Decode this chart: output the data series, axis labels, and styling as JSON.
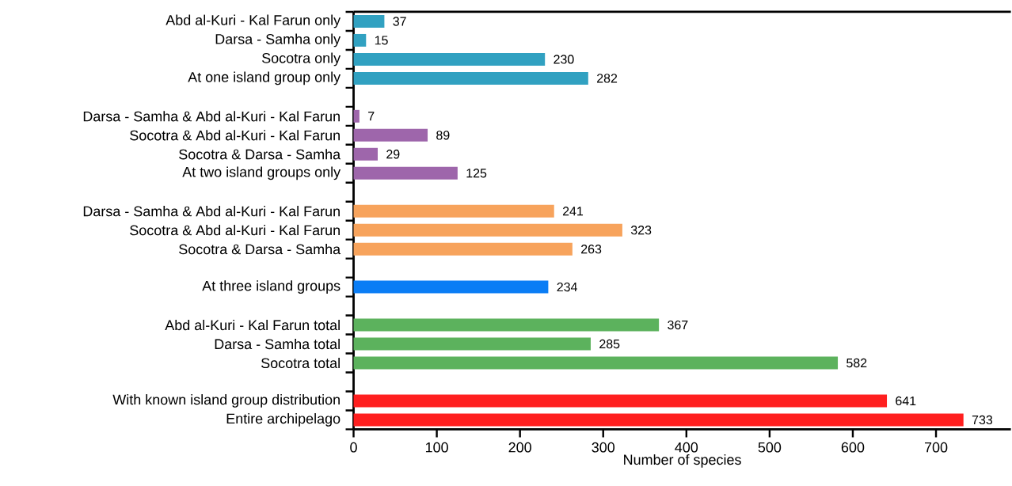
{
  "chart_data": {
    "type": "bar",
    "orientation": "horizontal",
    "xlabel": "Number of species",
    "categories": [
      "Abd al-Kuri - Kal Farun only",
      "Darsa - Samha only",
      "Socotra only",
      "At one island group only",
      null,
      "Darsa - Samha & Abd al-Kuri - Kal Farun",
      "Socotra & Abd al-Kuri - Kal Farun",
      "Socotra & Darsa - Samha",
      "At two island groups only",
      null,
      "Darsa - Samha & Abd al-Kuri - Kal Farun",
      "Socotra & Abd al-Kuri - Kal Farun",
      "Socotra & Darsa - Samha",
      null,
      "At three island groups",
      null,
      "Abd al-Kuri - Kal Farun total",
      "Darsa - Samha total",
      "Socotra total",
      null,
      "With known island group distribution",
      "Entire archipelago"
    ],
    "values": [
      37,
      15,
      230,
      282,
      null,
      7,
      89,
      29,
      125,
      null,
      241,
      323,
      263,
      null,
      234,
      null,
      367,
      285,
      582,
      null,
      641,
      733
    ],
    "colors": [
      "#31a1c1",
      "#31a1c1",
      "#31a1c1",
      "#31a1c1",
      null,
      "#9e66ab",
      "#9e66ab",
      "#9e66ab",
      "#9e66ab",
      null,
      "#f7a35c",
      "#f7a35c",
      "#f7a35c",
      null,
      "#0a7df5",
      null,
      "#5cb25d",
      "#5cb25d",
      "#5cb25d",
      null,
      "#ff1f1f",
      "#ff1f1f"
    ],
    "xlim": [
      0,
      790
    ],
    "xticks": [
      0,
      100,
      200,
      300,
      400,
      500,
      600,
      700
    ],
    "data_labels": true
  }
}
